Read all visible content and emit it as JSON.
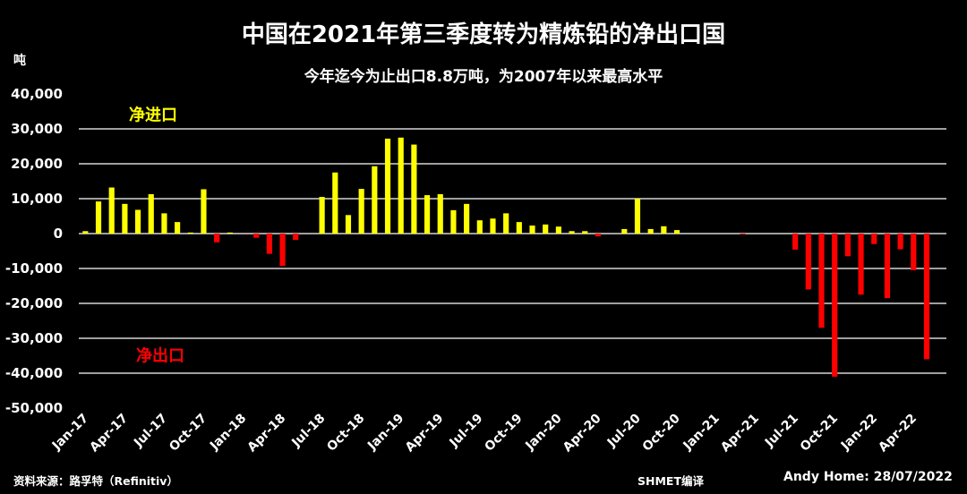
{
  "title": "中国在2021年第三季度转为精炼铅的净出口国",
  "subtitle": "今年迄今为止出口8.8万吨，为2007年以来最高水平",
  "unit_label": "吨",
  "source": "资料来源：路孚特（Refinitiv）",
  "translator": "SHMET编译",
  "credit": "Andy Home: 28/07/2022",
  "colors": {
    "positive": "#ffff00",
    "negative": "#ff0000",
    "background": "#000000",
    "grid": "#ffffff"
  },
  "chart_data": {
    "type": "bar",
    "title": "中国在2021年第三季度转为精炼铅的净出口国",
    "subtitle": "今年迄今为止出口8.8万吨，为2007年以来最高水平",
    "ylabel": "吨",
    "ylim": [
      -50000,
      40000
    ],
    "yticks": [
      40000,
      30000,
      20000,
      10000,
      0,
      -10000,
      -20000,
      -30000,
      -40000,
      -50000
    ],
    "ytick_labels": [
      "40,000",
      "30,000",
      "20,000",
      "10,000",
      "0",
      "-10,000",
      "-20,000",
      "-30,000",
      "-40,000",
      "-50,000"
    ],
    "grid": true,
    "annotations": [
      {
        "text": "净进口",
        "value": 34000,
        "color": "#ffff00",
        "position": "upper-left"
      },
      {
        "text": "净出口",
        "value": -35000,
        "color": "#ff0000",
        "position": "lower-left"
      }
    ],
    "xtick_labels": [
      "Jan-17",
      "Apr-17",
      "Jul-17",
      "Oct-17",
      "Jan-18",
      "Apr-18",
      "Jul-18",
      "Oct-18",
      "Jan-19",
      "Apr-19",
      "Jul-19",
      "Oct-19",
      "Jan-20",
      "Apr-20",
      "Jul-20",
      "Oct-20",
      "Jan-21",
      "Apr-21",
      "Jul-21",
      "Oct-21",
      "Jan-22",
      "Apr-22"
    ],
    "categories": [
      "Jan-17",
      "Feb-17",
      "Mar-17",
      "Apr-17",
      "May-17",
      "Jun-17",
      "Jul-17",
      "Aug-17",
      "Sep-17",
      "Oct-17",
      "Nov-17",
      "Dec-17",
      "Jan-18",
      "Feb-18",
      "Mar-18",
      "Apr-18",
      "May-18",
      "Jun-18",
      "Jul-18",
      "Aug-18",
      "Sep-18",
      "Oct-18",
      "Nov-18",
      "Dec-18",
      "Jan-19",
      "Feb-19",
      "Mar-19",
      "Apr-19",
      "May-19",
      "Jun-19",
      "Jul-19",
      "Aug-19",
      "Sep-19",
      "Oct-19",
      "Nov-19",
      "Dec-19",
      "Jan-20",
      "Feb-20",
      "Mar-20",
      "Apr-20",
      "May-20",
      "Jun-20",
      "Jul-20",
      "Aug-20",
      "Sep-20",
      "Oct-20",
      "Nov-20",
      "Dec-20",
      "Jan-21",
      "Feb-21",
      "Mar-21",
      "Apr-21",
      "May-21",
      "Jun-21",
      "Jul-21",
      "Aug-21",
      "Sep-21",
      "Oct-21",
      "Nov-21",
      "Dec-21",
      "Jan-22",
      "Feb-22",
      "Mar-22",
      "Apr-22",
      "May-22",
      "Jun-22"
    ],
    "values": [
      700,
      9200,
      13200,
      8500,
      6800,
      11300,
      5800,
      3300,
      300,
      12700,
      -2500,
      300,
      0,
      -1200,
      -5800,
      -9300,
      -1800,
      0,
      10500,
      17500,
      5300,
      12800,
      19300,
      27200,
      27500,
      25500,
      11000,
      11300,
      6700,
      8500,
      3800,
      4300,
      5800,
      3300,
      2300,
      2600,
      2000,
      700,
      700,
      -800,
      0,
      1300,
      10000,
      1300,
      2100,
      1000,
      0,
      0,
      0,
      0,
      -200,
      0,
      0,
      0,
      -4600,
      -16000,
      -27000,
      -41000,
      -6500,
      -17500,
      -3000,
      -18500,
      -4500,
      -10500,
      -36000,
      0
    ]
  }
}
